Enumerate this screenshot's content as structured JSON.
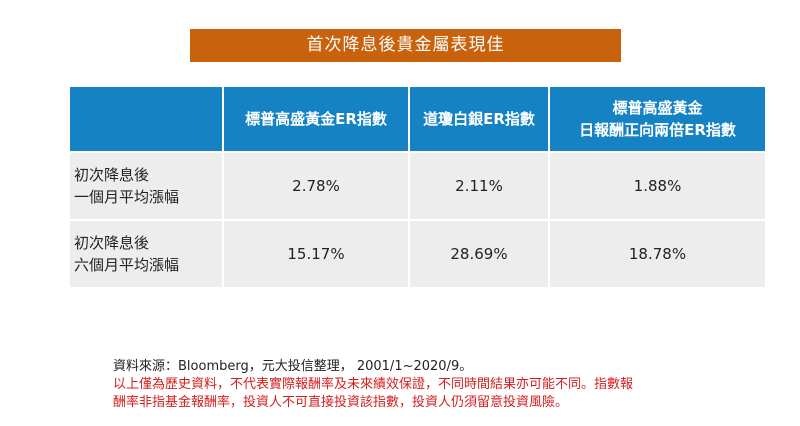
{
  "title": "首次降息後貴金屬表現佳",
  "table": {
    "headers": [
      {
        "lines": [
          ""
        ]
      },
      {
        "lines": [
          "標普高盛黃金ER指數"
        ]
      },
      {
        "lines": [
          "道瓊白銀ER指數"
        ]
      },
      {
        "lines": [
          "標普高盛黃金",
          "日報酬正向兩倍ER指數"
        ]
      }
    ],
    "rows": [
      {
        "label": [
          "初次降息後",
          "一個月平均漲幅"
        ],
        "values": [
          "2.78%",
          "2.11%",
          "1.88%"
        ]
      },
      {
        "label": [
          "初次降息後",
          "六個月平均漲幅"
        ],
        "values": [
          "15.17%",
          "28.69%",
          "18.78%"
        ]
      }
    ]
  },
  "notes": {
    "source": "資料來源：Bloomberg，元大投信整理， 2001/1~2020/9。",
    "disclaimer_lines": [
      "以上僅為歷史資料，不代表實際報酬率及未來績效保證，不同時間結果亦可能不同。指數報",
      "酬率非指基金報酬率，投資人不可直接投資該指數，投資人仍須留意投資風險。"
    ]
  },
  "colors": {
    "title_bg": "#c9620d",
    "header_bg": "#1582c4",
    "cell_bg": "#ededee",
    "disclaimer_text": "#d31e1e"
  }
}
